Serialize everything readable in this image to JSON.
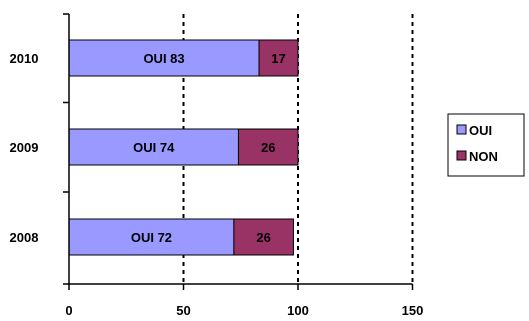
{
  "chart_data": {
    "type": "bar",
    "orientation": "horizontal",
    "stacked": true,
    "categories": [
      "2010",
      "2009",
      "2008"
    ],
    "series": [
      {
        "name": "OUI",
        "values": [
          83,
          74,
          72
        ],
        "color": "#9999ff",
        "labels": [
          "OUI 83",
          "OUI 74",
          "OUI 72"
        ]
      },
      {
        "name": "NON",
        "values": [
          17,
          26,
          26
        ],
        "color": "#993366",
        "labels": [
          "17",
          "26",
          "26"
        ]
      }
    ],
    "xlim": [
      0,
      150
    ],
    "xticks": [
      "0",
      "50",
      "100",
      "150"
    ],
    "grid": "vertical dashed",
    "legend": "right",
    "title": "",
    "xlabel": "",
    "ylabel": ""
  }
}
